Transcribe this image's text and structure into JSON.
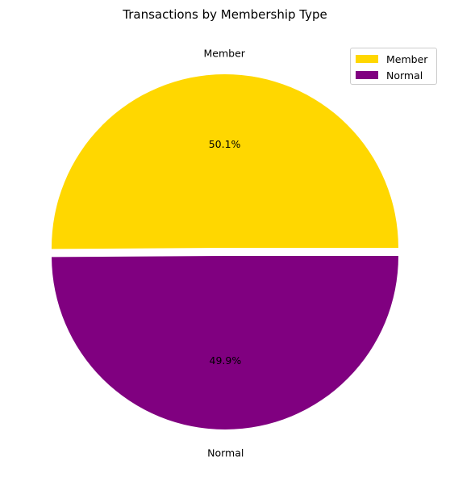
{
  "chart_data": {
    "type": "pie",
    "title": "Transactions by Membership Type",
    "slices": [
      {
        "label": "Member",
        "value": 50.1,
        "pct_label": "50.1%",
        "color": "#FFD700"
      },
      {
        "label": "Normal",
        "value": 49.9,
        "pct_label": "49.9%",
        "color": "#800080"
      }
    ],
    "start_angle_deg": 0,
    "direction": "counterclockwise",
    "exploded": "Member",
    "legend_position": "top-right",
    "legend": [
      "Member",
      "Normal"
    ]
  }
}
